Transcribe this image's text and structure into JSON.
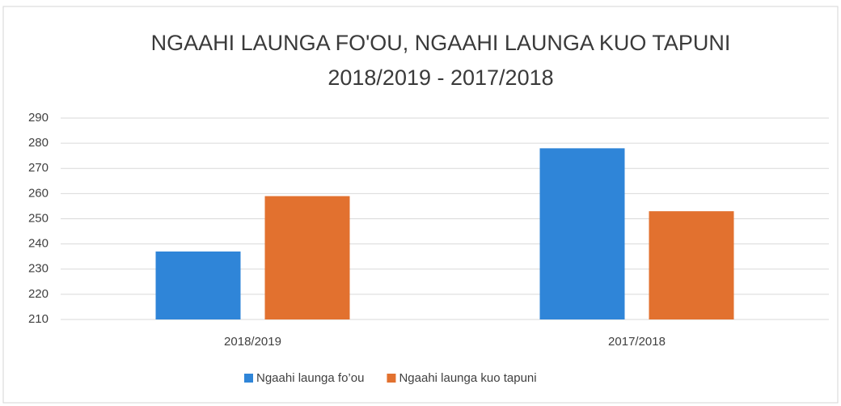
{
  "chart_data": {
    "type": "bar",
    "title": [
      "NGAAHI LAUNGA FO'OU, NGAAHI LAUNGA KUO TAPUNI",
      "2018/2019 - 2017/2018"
    ],
    "categories": [
      "2018/2019",
      "2017/2018"
    ],
    "series": [
      {
        "name": "Ngaahi launga fo’ou",
        "color": "#2f85d8",
        "values": [
          237,
          278
        ]
      },
      {
        "name": "Ngaahi launga kuo tapuni",
        "color": "#e2712f",
        "values": [
          259,
          253
        ]
      }
    ],
    "ylim": [
      210,
      290
    ],
    "yticks": [
      210,
      220,
      230,
      240,
      250,
      260,
      270,
      280,
      290
    ],
    "grid": true,
    "legend": "bottom"
  }
}
